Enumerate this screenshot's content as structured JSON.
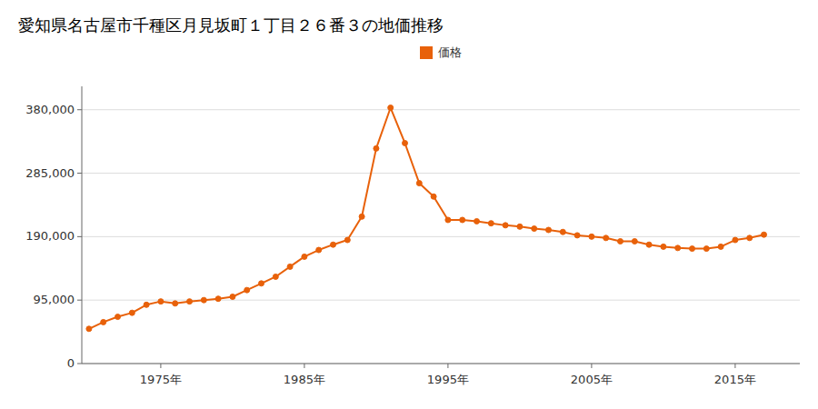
{
  "chart_data": {
    "type": "line",
    "title": "愛知県名古屋市千種区月見坂町１丁目２６番３の地価推移",
    "x": [
      1970,
      1971,
      1972,
      1973,
      1974,
      1975,
      1976,
      1977,
      1978,
      1979,
      1980,
      1981,
      1982,
      1983,
      1984,
      1985,
      1986,
      1987,
      1988,
      1989,
      1990,
      1991,
      1992,
      1993,
      1994,
      1995,
      1996,
      1997,
      1998,
      1999,
      2000,
      2001,
      2002,
      2003,
      2004,
      2005,
      2006,
      2007,
      2008,
      2009,
      2010,
      2011,
      2012,
      2013,
      2014,
      2015,
      2016,
      2017
    ],
    "series": [
      {
        "name": "価格",
        "color": "#e8610a",
        "marker": "circle",
        "values": [
          52000,
          62000,
          70000,
          76000,
          88000,
          93000,
          90000,
          93000,
          95000,
          97000,
          100000,
          110000,
          120000,
          130000,
          145000,
          160000,
          170000,
          178000,
          185000,
          220000,
          322000,
          383000,
          330000,
          270000,
          250000,
          215000,
          215000,
          213000,
          210000,
          207000,
          205000,
          202000,
          200000,
          197000,
          192000,
          190000,
          188000,
          183000,
          183000,
          178000,
          175000,
          173000,
          172000,
          172000,
          175000,
          185000,
          188000,
          193000
        ]
      }
    ],
    "xlim": [
      1969.5,
      2019.5
    ],
    "xticks": [
      {
        "value": 1975,
        "label": "1975年"
      },
      {
        "value": 1985,
        "label": "1985年"
      },
      {
        "value": 1995,
        "label": "1995年"
      },
      {
        "value": 2005,
        "label": "2005年"
      },
      {
        "value": 2015,
        "label": "2015年"
      }
    ],
    "ylim": [
      0,
      415000
    ],
    "yticks": [
      0,
      {
        "value": 95000,
        "label": "95,000"
      },
      {
        "value": 190000,
        "label": "190,000"
      },
      {
        "value": 285000,
        "label": "285,000"
      },
      {
        "value": 380000,
        "label": "380,000"
      }
    ],
    "grid": "y",
    "legend": "top"
  }
}
